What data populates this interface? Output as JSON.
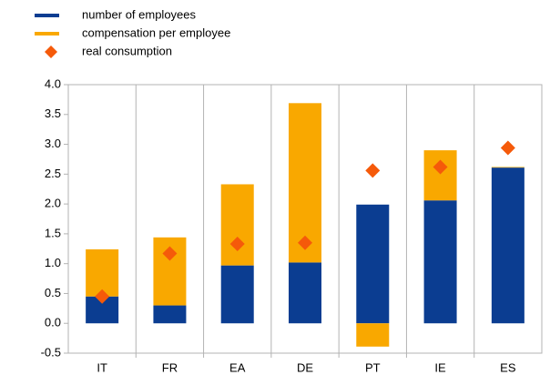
{
  "chart_data": {
    "type": "bar",
    "stacked": true,
    "categories": [
      "IT",
      "FR",
      "EA",
      "DE",
      "PT",
      "IE",
      "ES"
    ],
    "series": [
      {
        "name": "number of employees",
        "color": "#0b3d91",
        "values": [
          0.45,
          0.3,
          0.97,
          1.02,
          1.99,
          2.06,
          2.61
        ]
      },
      {
        "name": "compensation per employee",
        "color": "#f9a800",
        "values": [
          0.79,
          1.14,
          1.36,
          2.67,
          -0.39,
          0.84,
          0.01
        ]
      },
      {
        "name": "real consumption",
        "color": "#f55a0a",
        "type": "marker",
        "values": [
          0.45,
          1.17,
          1.33,
          1.35,
          2.56,
          2.62,
          2.94
        ]
      }
    ],
    "ylim": [
      -0.5,
      4.0
    ],
    "yticks": [
      {
        "value": -0.5,
        "label": "-0.5"
      },
      {
        "value": 0,
        "label": "0.0"
      },
      0.5,
      {
        "value": 1,
        "label": "1.0"
      },
      1.5,
      {
        "value": 2,
        "label": "2.0"
      },
      2.5,
      {
        "value": 3,
        "label": "3.0"
      },
      3.5,
      {
        "value": 4,
        "label": "4.0"
      }
    ],
    "grid": true,
    "legend": "top-left"
  }
}
